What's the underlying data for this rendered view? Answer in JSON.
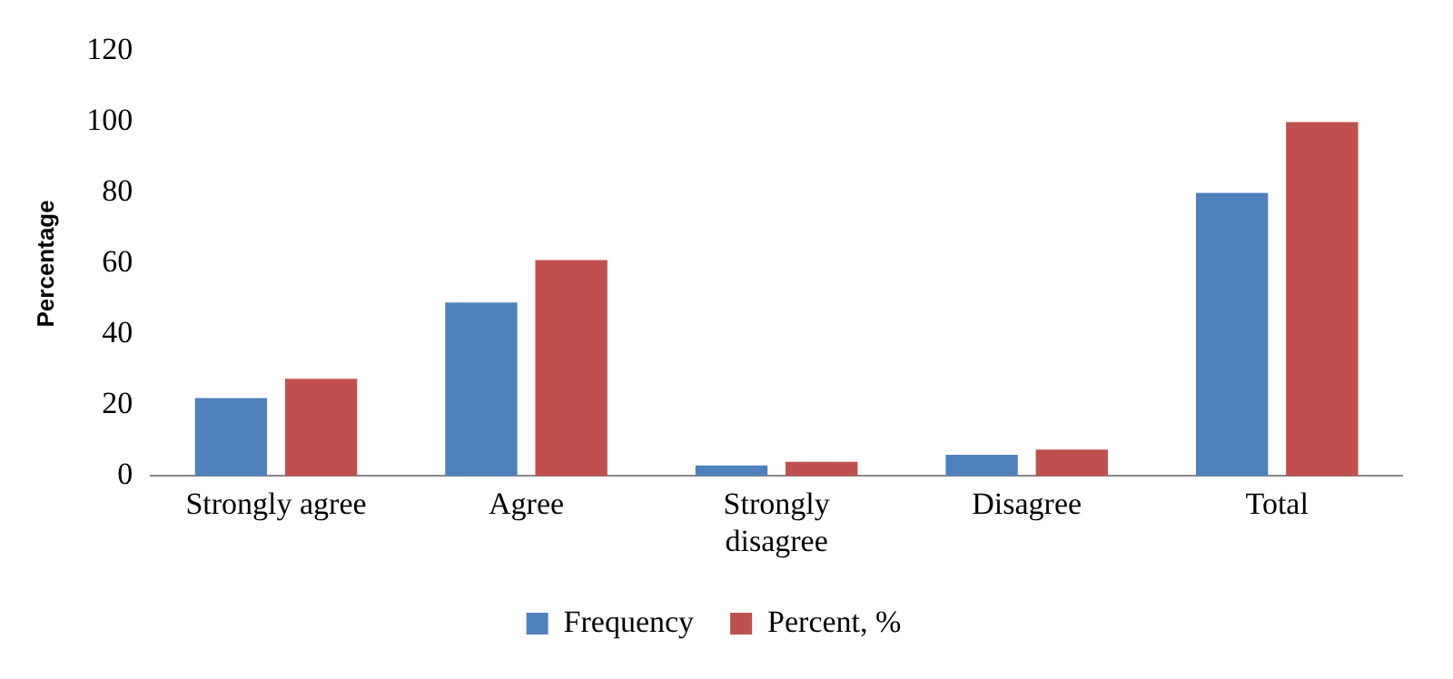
{
  "chart_data": {
    "type": "bar",
    "ylabel": "Percentage",
    "categories": [
      "Strongly agree",
      "Agree",
      "Strongly disagree",
      "Disagree",
      "Total"
    ],
    "series": [
      {
        "name": "Frequency",
        "color": "#4f81bd",
        "values": [
          22,
          49,
          3,
          6,
          80
        ]
      },
      {
        "name": "Percent, %",
        "color": "#c0504d",
        "values": [
          27.5,
          61,
          4,
          7.5,
          100
        ]
      }
    ],
    "ylim": [
      0,
      120
    ],
    "yticks": [
      0,
      20,
      40,
      60,
      80,
      100,
      120
    ],
    "grid": false,
    "legend": "bottom"
  }
}
